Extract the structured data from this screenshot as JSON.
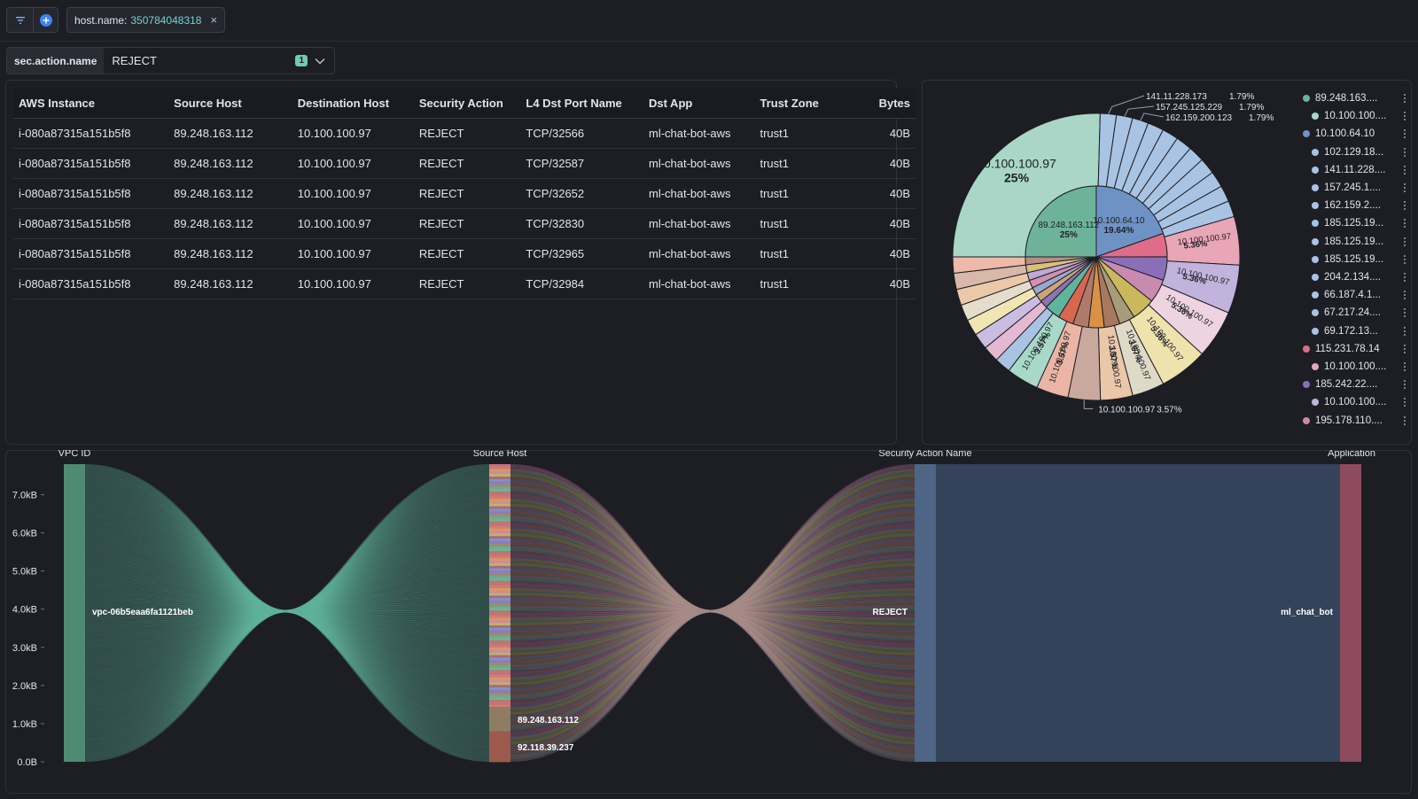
{
  "filter_bar": {
    "filter_key": "host.name:",
    "filter_value": "350784048318"
  },
  "control": {
    "label": "sec.action.name",
    "selected": "REJECT",
    "count": "1"
  },
  "table": {
    "columns": [
      "AWS Instance",
      "Source Host",
      "Destination Host",
      "Security Action",
      "L4 Dst Port Name",
      "Dst App",
      "Trust Zone",
      "Bytes"
    ],
    "rows": [
      [
        "i-080a87315a151b5f8",
        "89.248.163.112",
        "10.100.100.97",
        "REJECT",
        "TCP/32566",
        "ml-chat-bot-aws",
        "trust1",
        "40B"
      ],
      [
        "i-080a87315a151b5f8",
        "89.248.163.112",
        "10.100.100.97",
        "REJECT",
        "TCP/32587",
        "ml-chat-bot-aws",
        "trust1",
        "40B"
      ],
      [
        "i-080a87315a151b5f8",
        "89.248.163.112",
        "10.100.100.97",
        "REJECT",
        "TCP/32652",
        "ml-chat-bot-aws",
        "trust1",
        "40B"
      ],
      [
        "i-080a87315a151b5f8",
        "89.248.163.112",
        "10.100.100.97",
        "REJECT",
        "TCP/32830",
        "ml-chat-bot-aws",
        "trust1",
        "40B"
      ],
      [
        "i-080a87315a151b5f8",
        "89.248.163.112",
        "10.100.100.97",
        "REJECT",
        "TCP/32965",
        "ml-chat-bot-aws",
        "trust1",
        "40B"
      ],
      [
        "i-080a87315a151b5f8",
        "89.248.163.112",
        "10.100.100.97",
        "REJECT",
        "TCP/32984",
        "ml-chat-bot-aws",
        "trust1",
        "40B"
      ]
    ]
  },
  "pie": {
    "inner": [
      {
        "label": "89.248.163.112",
        "pct": "25%",
        "value": 25,
        "color": "#6db39a"
      },
      {
        "label": "10.100.64.10",
        "pct": "19.64%",
        "value": 19.64,
        "color": "#6f92c4"
      },
      {
        "label": "",
        "value": 5.36,
        "color": "#e06c8a"
      },
      {
        "label": "",
        "value": 5.36,
        "color": "#8a6fb8"
      },
      {
        "label": "",
        "value": 5.36,
        "color": "#c98ab0"
      },
      {
        "label": "",
        "value": 5.36,
        "color": "#c9b85c"
      },
      {
        "label": "",
        "value": 3.57,
        "color": "#a89b7a"
      },
      {
        "label": "",
        "value": 3.57,
        "color": "#a9785d"
      },
      {
        "label": "",
        "value": 3.57,
        "color": "#d99145"
      },
      {
        "label": "",
        "value": 3.57,
        "color": "#b07a6a"
      },
      {
        "label": "",
        "value": 3.57,
        "color": "#d9674f"
      },
      {
        "label": "",
        "value": 3.57,
        "color": "#5fb49c"
      },
      {
        "label": "",
        "value": 1.79,
        "color": "#8d74b3"
      },
      {
        "label": "",
        "value": 1.79,
        "color": "#c9a57a"
      },
      {
        "label": "",
        "value": 1.79,
        "color": "#9aa8cf"
      },
      {
        "label": "",
        "value": 1.79,
        "color": "#d191b0"
      },
      {
        "label": "",
        "value": 1.79,
        "color": "#c1a9d6"
      },
      {
        "label": "",
        "value": 1.79,
        "color": "#d8c27a"
      },
      {
        "label": "",
        "value": 1.79,
        "color": "#b98d84"
      }
    ],
    "outer": [
      {
        "label": "10.100.100.97",
        "pct": "25%",
        "value": 25,
        "color": "#a9d6c7",
        "inside": "big"
      },
      {
        "label": "141.11.228.173",
        "pct": "1.79%",
        "value": 1.79,
        "color": "#a9c3e3",
        "callout": true
      },
      {
        "label": "157.245.125.229",
        "pct": "1.79%",
        "value": 1.79,
        "color": "#a9c3e3",
        "callout": true
      },
      {
        "label": "162.159.200.123",
        "pct": "1.79%",
        "value": 1.79,
        "color": "#a9c3e3",
        "callout": true
      },
      {
        "label": "",
        "value": 1.79,
        "color": "#a9c3e3"
      },
      {
        "label": "",
        "value": 1.79,
        "color": "#a9c3e3"
      },
      {
        "label": "",
        "value": 1.79,
        "color": "#a9c3e3"
      },
      {
        "label": "",
        "value": 1.79,
        "color": "#a9c3e3"
      },
      {
        "label": "",
        "value": 1.79,
        "color": "#a9c3e3"
      },
      {
        "label": "",
        "value": 1.79,
        "color": "#a9c3e3"
      },
      {
        "label": "",
        "value": 1.79,
        "color": "#a9c3e3"
      },
      {
        "label": "",
        "value": 1.79,
        "color": "#a9c3e3"
      },
      {
        "label": "10.100.100.97",
        "pct": "5.36%",
        "value": 5.36,
        "color": "#e8a6b6",
        "inside": "small"
      },
      {
        "label": "10.100.100.97",
        "pct": "5.36%",
        "value": 5.36,
        "color": "#c2b3dc",
        "inside": "small"
      },
      {
        "label": "10.100.100.97",
        "pct": "5.36%",
        "value": 5.36,
        "color": "#eed3e0",
        "inside": "small"
      },
      {
        "label": "10.100.100.97",
        "pct": "5.36%",
        "value": 5.36,
        "color": "#eee2ad",
        "inside": "small"
      },
      {
        "label": "10.100.100.97",
        "pct": "3.57%",
        "value": 3.57,
        "color": "#dfd9c8",
        "inside": "small"
      },
      {
        "label": "10.100.100.97",
        "pct": "3.57%",
        "value": 3.57,
        "color": "#e9c7a8",
        "inside": "small"
      },
      {
        "label": "10.100.100.97",
        "pct": "3.57%",
        "value": 3.57,
        "color": "#c9a89e",
        "callout2": true
      },
      {
        "label": "10.100.100.97",
        "pct": "3.57%",
        "value": 3.57,
        "color": "#eab5a4",
        "inside": "small"
      },
      {
        "label": "10.100.100.97",
        "pct": "3.57%",
        "value": 3.57,
        "color": "#a8d8c8",
        "inside": "small"
      },
      {
        "label": "",
        "value": 1.79,
        "color": "#a9c3e3"
      },
      {
        "label": "",
        "value": 1.79,
        "color": "#e3b8d0"
      },
      {
        "label": "",
        "value": 1.79,
        "color": "#cbbde2"
      },
      {
        "label": "",
        "value": 1.79,
        "color": "#f0e6b4"
      },
      {
        "label": "",
        "value": 1.79,
        "color": "#e6dccb"
      },
      {
        "label": "",
        "value": 1.79,
        "color": "#eac8a8"
      },
      {
        "label": "",
        "value": 1.79,
        "color": "#d8b8a8"
      },
      {
        "label": "",
        "value": 1.79,
        "color": "#edb9a8"
      }
    ],
    "legend": [
      {
        "text": "89.248.163....",
        "color": "#6db39a",
        "indent": false
      },
      {
        "text": "10.100.100....",
        "color": "#a9d6c7",
        "indent": true
      },
      {
        "text": "10.100.64.10",
        "color": "#6f92c4",
        "indent": false
      },
      {
        "text": "102.129.18...",
        "color": "#a9c3e3",
        "indent": true
      },
      {
        "text": "141.11.228....",
        "color": "#a9c3e3",
        "indent": true
      },
      {
        "text": "157.245.1....",
        "color": "#a9c3e3",
        "indent": true
      },
      {
        "text": "162.159.2....",
        "color": "#a9c3e3",
        "indent": true
      },
      {
        "text": "185.125.19...",
        "color": "#a9c3e3",
        "indent": true
      },
      {
        "text": "185.125.19...",
        "color": "#a9c3e3",
        "indent": true
      },
      {
        "text": "185.125.19...",
        "color": "#a9c3e3",
        "indent": true
      },
      {
        "text": "204.2.134....",
        "color": "#a9c3e3",
        "indent": true
      },
      {
        "text": "66.187.4.1...",
        "color": "#a9c3e3",
        "indent": true
      },
      {
        "text": "67.217.24....",
        "color": "#a9c3e3",
        "indent": true
      },
      {
        "text": "69.172.13...",
        "color": "#a9c3e3",
        "indent": true
      },
      {
        "text": "115.231.78.14",
        "color": "#e06c8a",
        "indent": false
      },
      {
        "text": "10.100.100....",
        "color": "#e8a6b6",
        "indent": true
      },
      {
        "text": "185.242.22....",
        "color": "#8a6fb8",
        "indent": false
      },
      {
        "text": "10.100.100....",
        "color": "#c2b3dc",
        "indent": true
      },
      {
        "text": "195.178.110....",
        "color": "#c98ab0",
        "indent": false
      }
    ]
  },
  "chart_data": {
    "type": "sankey",
    "axis_headers": [
      "VPC ID",
      "Source Host",
      "Security Action Name",
      "Application"
    ],
    "y_ticks": [
      "0.0B",
      "1.0kB",
      "2.0kB",
      "3.0kB",
      "4.0kB",
      "5.0kB",
      "6.0kB",
      "7.0kB"
    ],
    "ylim": [
      0,
      7800
    ],
    "nodes": {
      "vpc": {
        "label": "vpc-06b5eaa6fa1121beb",
        "value": 7800,
        "color": "#4f8a74"
      },
      "action": {
        "label": "REJECT",
        "value": 7800,
        "color": "#4e6585"
      },
      "app": {
        "label": "ml_chat_bot",
        "value": 7800,
        "color": "#8e4a5e"
      }
    },
    "source_hosts": [
      {
        "label": "92.118.39.237",
        "value": 800,
        "color": "#9b5a4d"
      },
      {
        "label": "89.248.163.112",
        "value": 640,
        "color": "#8e7d62"
      }
    ],
    "source_host_count": 120
  }
}
